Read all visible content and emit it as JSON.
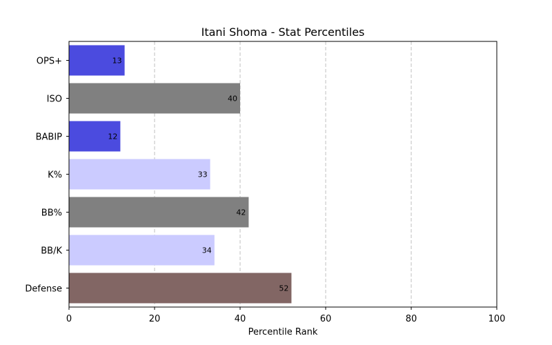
{
  "chart_data": {
    "type": "bar",
    "orientation": "horizontal",
    "title": "Itani Shoma - Stat Percentiles",
    "xlabel": "Percentile Rank",
    "ylabel": "",
    "xlim": [
      0,
      100
    ],
    "xticks": [
      0,
      20,
      40,
      60,
      80,
      100
    ],
    "grid": "x-dashed",
    "categories": [
      "OPS+",
      "ISO",
      "BABIP",
      "K%",
      "BB%",
      "BB/K",
      "Defense"
    ],
    "values": [
      13,
      40,
      12,
      33,
      42,
      34,
      52
    ],
    "colors": [
      "#4b4bdf",
      "#808080",
      "#4b4bdf",
      "#cbcbff",
      "#808080",
      "#cbcbff",
      "#826664"
    ]
  }
}
